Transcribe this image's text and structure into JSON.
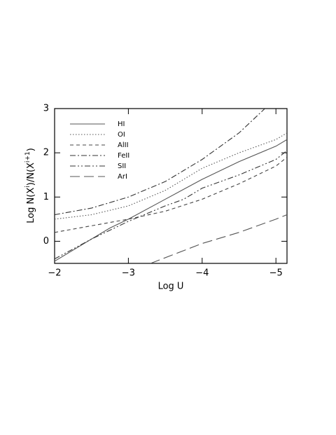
{
  "chart_data": {
    "type": "line",
    "x_label": "Log U",
    "y_label": [
      "Log N(X",
      "i",
      ")/N(X",
      "i+1",
      ")"
    ],
    "xlim": [
      -2,
      -5.15
    ],
    "ylim": [
      -0.5,
      3
    ],
    "xticks": [
      {
        "value": -2,
        "label": "−2"
      },
      {
        "value": -3,
        "label": "−3"
      },
      {
        "value": -4,
        "label": "−4"
      },
      {
        "value": -5,
        "label": "−5"
      }
    ],
    "yticks": [
      0,
      1,
      2,
      3
    ],
    "legend": "upper left",
    "series": [
      {
        "name": "HI",
        "color": "#555555",
        "dash": "none",
        "x": [
          -2,
          -2.75,
          -3,
          -3.5,
          -4,
          -4.5,
          -5,
          -5.15
        ],
        "values": [
          -0.45,
          0.3,
          0.5,
          0.95,
          1.4,
          1.8,
          2.15,
          2.3
        ]
      },
      {
        "name": "OI",
        "color": "#555555",
        "dash": "1.5,2.5",
        "x": [
          -2,
          -2.5,
          -3,
          -3.5,
          -4,
          -4.5,
          -5,
          -5.15
        ],
        "values": [
          0.5,
          0.6,
          0.8,
          1.15,
          1.65,
          2.0,
          2.3,
          2.45
        ]
      },
      {
        "name": "AlII",
        "color": "#444444",
        "dash": "5,4",
        "x": [
          -2,
          -2.5,
          -3,
          -3.5,
          -4,
          -4.5,
          -5,
          -5.15
        ],
        "values": [
          0.2,
          0.35,
          0.5,
          0.68,
          0.95,
          1.3,
          1.7,
          1.9
        ]
      },
      {
        "name": "FeII",
        "color": "#333333",
        "dash": "8,3,2,3",
        "x": [
          -2,
          -2.5,
          -3,
          -3.5,
          -3.75,
          -4,
          -4.5,
          -4.85
        ],
        "values": [
          0.6,
          0.75,
          1.0,
          1.35,
          1.6,
          1.85,
          2.45,
          3.0
        ]
      },
      {
        "name": "SII",
        "color": "#333333",
        "dash": "8,3,2,3,2,3",
        "x": [
          -2,
          -2.5,
          -3,
          -3.5,
          -3.75,
          -4,
          -4.5,
          -5,
          -5.15
        ],
        "values": [
          -0.4,
          0.05,
          0.45,
          0.8,
          0.95,
          1.2,
          1.5,
          1.85,
          2.05
        ]
      },
      {
        "name": "ArI",
        "color": "#555555",
        "dash": "14,6",
        "x": [
          -3.3,
          -4,
          -4.5,
          -5,
          -5.15
        ],
        "values": [
          -0.5,
          -0.05,
          0.2,
          0.5,
          0.6
        ]
      }
    ]
  }
}
